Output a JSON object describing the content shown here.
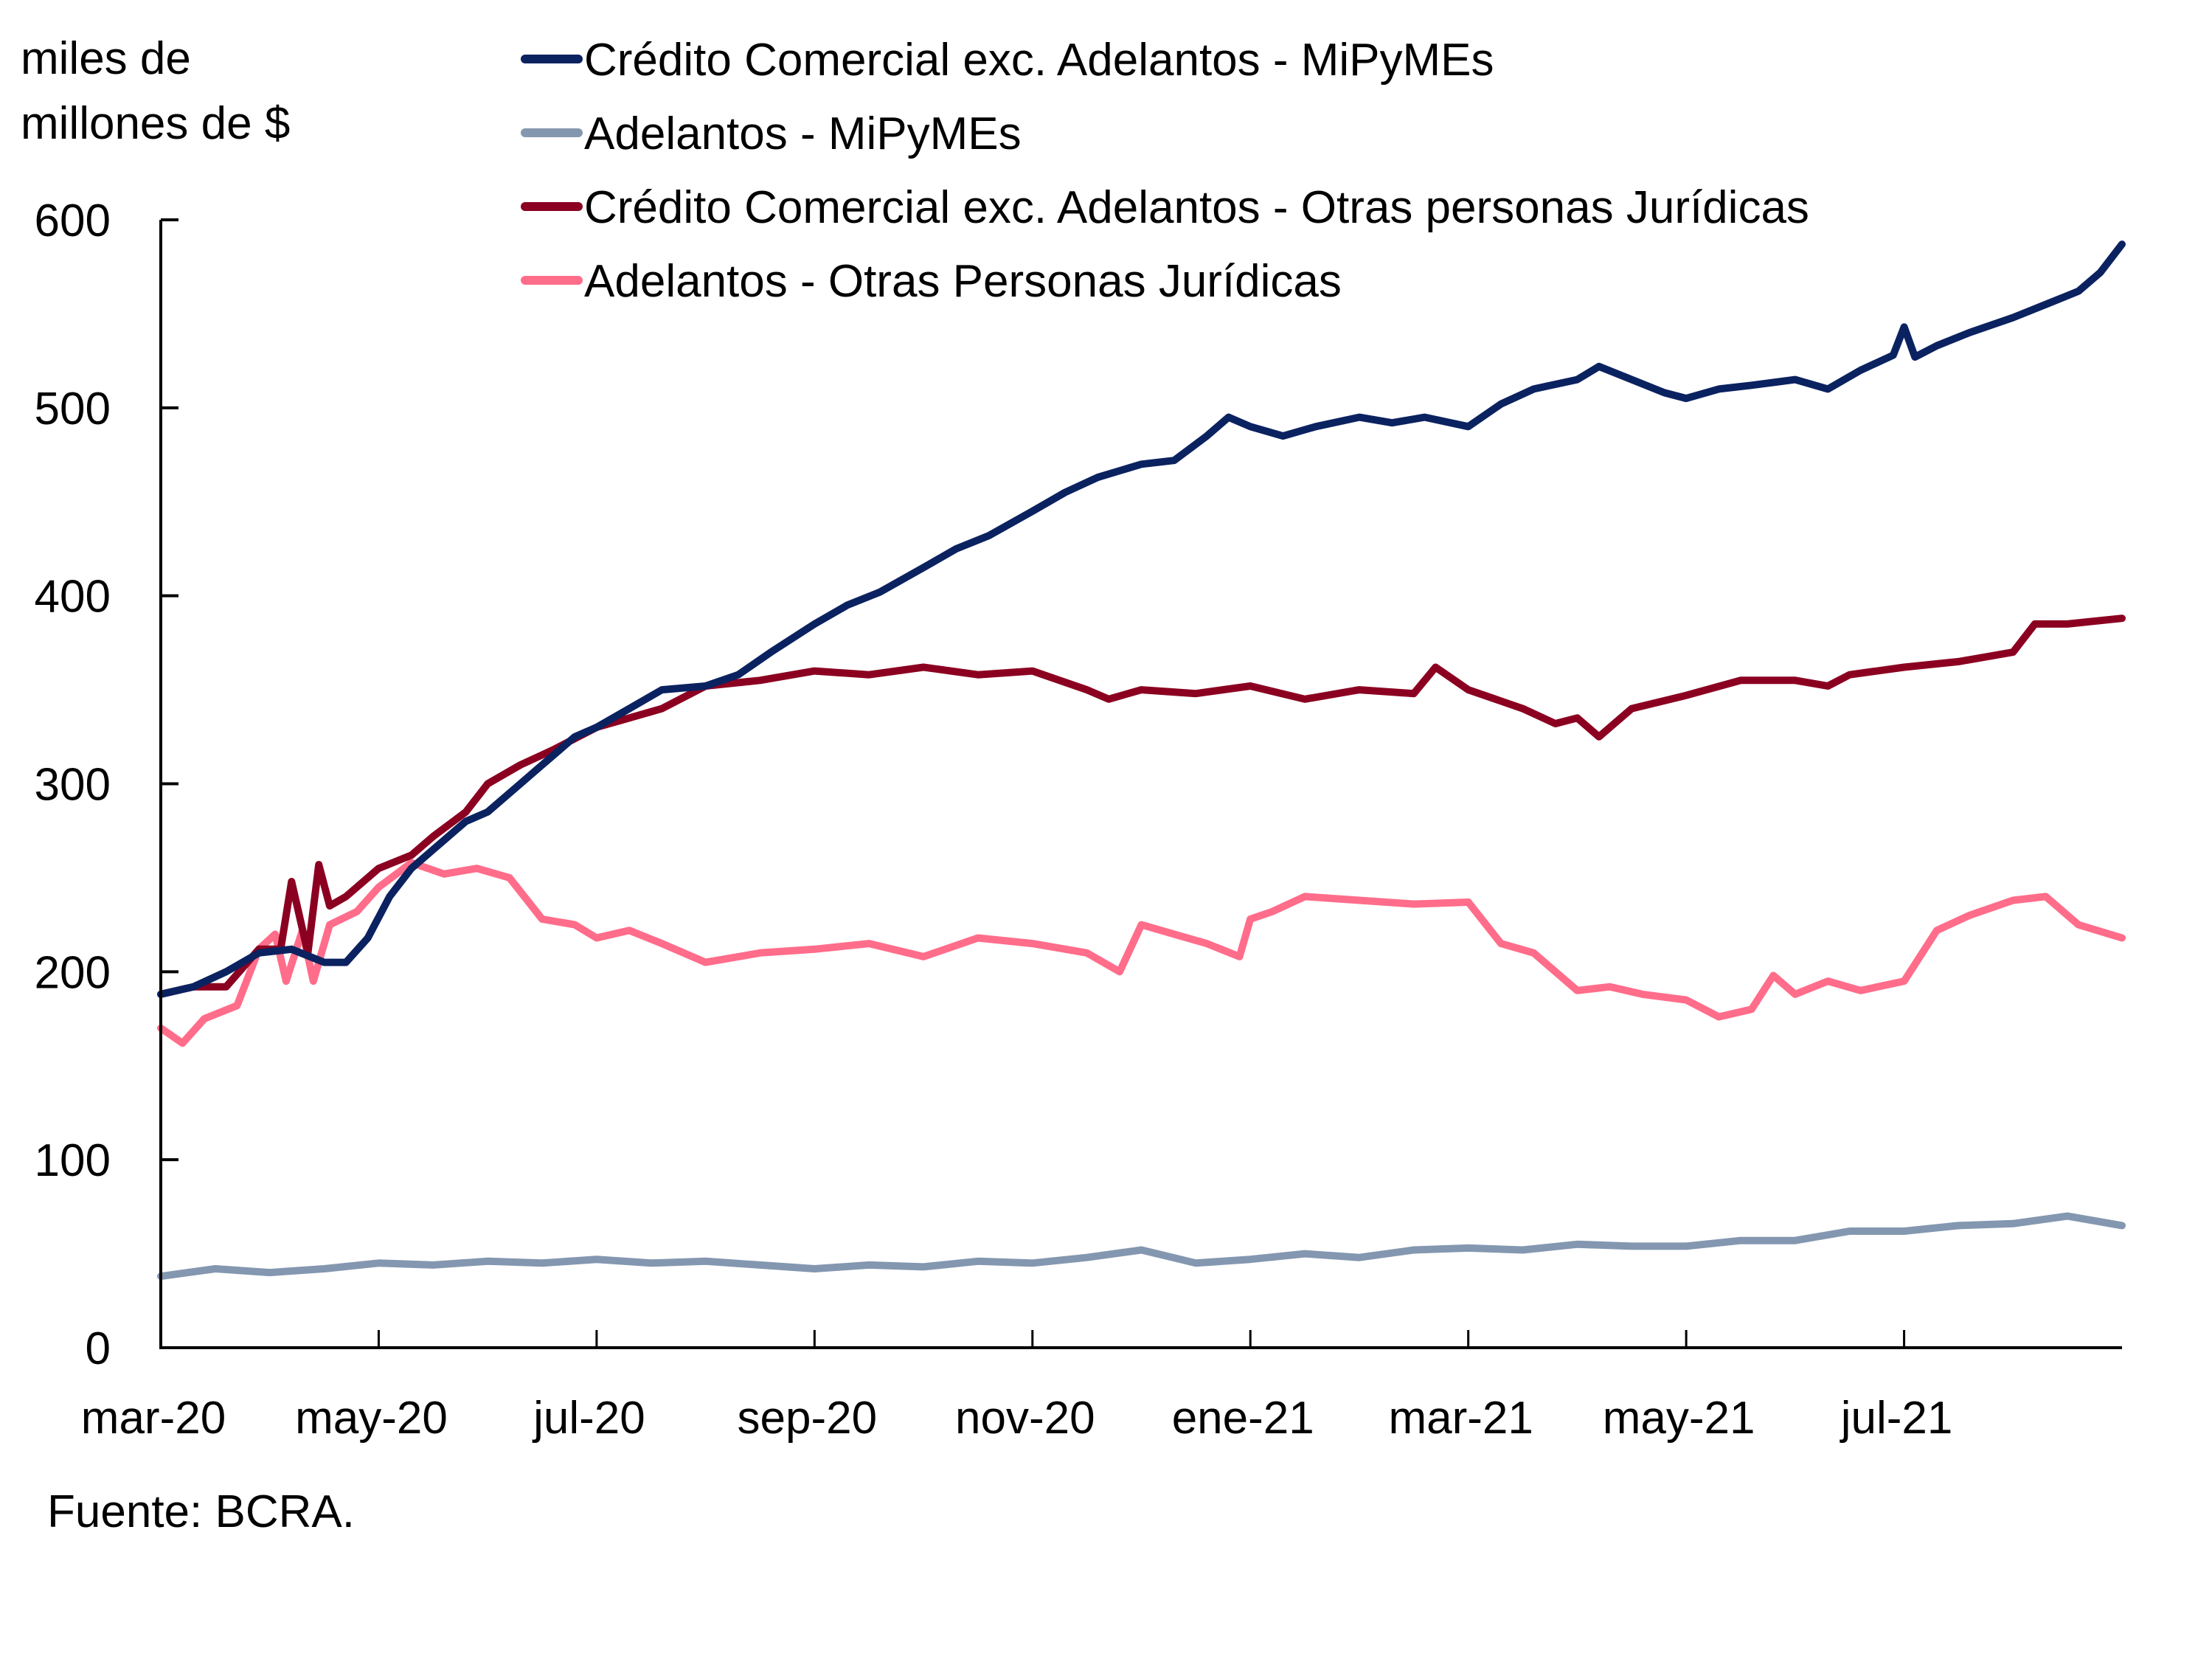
{
  "chart_data": {
    "type": "line",
    "title": "",
    "ylabel_lines": [
      "miles de",
      "millones de $"
    ],
    "xlabel": "",
    "ylim": [
      0,
      600
    ],
    "yticks": [
      0,
      100,
      200,
      300,
      400,
      500,
      600
    ],
    "x_unit": "months since 2020-03-01",
    "xlim": [
      0,
      18
    ],
    "xticks": [
      {
        "pos": 0,
        "label": "mar-20"
      },
      {
        "pos": 2,
        "label": "may-20"
      },
      {
        "pos": 4,
        "label": "jul-20"
      },
      {
        "pos": 6,
        "label": "sep-20"
      },
      {
        "pos": 8,
        "label": "nov-20"
      },
      {
        "pos": 10,
        "label": "ene-21"
      },
      {
        "pos": 12,
        "label": "mar-21"
      },
      {
        "pos": 14,
        "label": "may-21"
      },
      {
        "pos": 16,
        "label": "jul-21"
      }
    ],
    "grid": false,
    "legend_position": "top",
    "source": "Fuente: BCRA.",
    "series": [
      {
        "name": "Crédito Comercial exc. Adelantos - MiPyMEs",
        "color": "#0B2260",
        "x": [
          0,
          0.3,
          0.6,
          0.9,
          1.2,
          1.5,
          1.7,
          1.9,
          2.1,
          2.3,
          2.5,
          2.8,
          3.0,
          3.3,
          3.5,
          3.8,
          4.0,
          4.3,
          4.6,
          5.0,
          5.3,
          5.6,
          6.0,
          6.3,
          6.6,
          7.0,
          7.3,
          7.6,
          8.0,
          8.3,
          8.6,
          9.0,
          9.3,
          9.6,
          9.8,
          10.0,
          10.3,
          10.6,
          11.0,
          11.3,
          11.6,
          12.0,
          12.3,
          12.6,
          13.0,
          13.2,
          13.5,
          13.8,
          14.0,
          14.3,
          14.6,
          15.0,
          15.3,
          15.6,
          15.9,
          16.0,
          16.1,
          16.3,
          16.6,
          17.0,
          17.3,
          17.6,
          17.8,
          18.0
        ],
        "values": [
          188,
          192,
          200,
          210,
          212,
          205,
          205,
          218,
          240,
          255,
          265,
          280,
          285,
          300,
          310,
          325,
          330,
          340,
          350,
          352,
          358,
          370,
          385,
          395,
          402,
          415,
          425,
          432,
          445,
          455,
          463,
          470,
          472,
          485,
          495,
          490,
          485,
          490,
          495,
          492,
          495,
          490,
          502,
          510,
          515,
          522,
          515,
          508,
          505,
          510,
          512,
          515,
          510,
          520,
          528,
          543,
          527,
          533,
          540,
          548,
          555,
          562,
          572,
          587
        ]
      },
      {
        "name": "Adelantos - MiPyMEs",
        "color": "#8497B0",
        "x": [
          0,
          0.5,
          1.0,
          1.5,
          2.0,
          2.5,
          3.0,
          3.5,
          4.0,
          4.5,
          5.0,
          5.5,
          6.0,
          6.5,
          7.0,
          7.5,
          8.0,
          8.5,
          9.0,
          9.5,
          10.0,
          10.5,
          11.0,
          11.5,
          12.0,
          12.5,
          13.0,
          13.5,
          14.0,
          14.5,
          15.0,
          15.5,
          16.0,
          16.5,
          17.0,
          17.5,
          18.0
        ],
        "values": [
          38,
          42,
          40,
          42,
          45,
          44,
          46,
          45,
          47,
          45,
          46,
          44,
          42,
          44,
          43,
          46,
          45,
          48,
          52,
          45,
          47,
          50,
          48,
          52,
          53,
          52,
          55,
          54,
          54,
          57,
          57,
          62,
          62,
          65,
          66,
          70,
          65
        ]
      },
      {
        "name": "Crédito Comercial exc. Adelantos - Otras personas Jurídicas",
        "color": "#8B0020",
        "x": [
          0,
          0.3,
          0.6,
          0.9,
          1.1,
          1.2,
          1.35,
          1.45,
          1.55,
          1.7,
          2.0,
          2.3,
          2.5,
          2.8,
          3.0,
          3.3,
          3.6,
          4.0,
          4.3,
          4.6,
          5.0,
          5.5,
          6.0,
          6.5,
          7.0,
          7.5,
          8.0,
          8.5,
          8.7,
          9.0,
          9.5,
          10.0,
          10.5,
          11.0,
          11.5,
          11.7,
          12.0,
          12.5,
          12.8,
          13.0,
          13.2,
          13.5,
          14.0,
          14.5,
          15.0,
          15.3,
          15.5,
          16.0,
          16.5,
          17.0,
          17.2,
          17.5,
          18.0
        ],
        "values": [
          188,
          192,
          192,
          212,
          212,
          248,
          210,
          257,
          235,
          240,
          255,
          262,
          272,
          285,
          300,
          310,
          318,
          330,
          335,
          340,
          352,
          355,
          360,
          358,
          362,
          358,
          360,
          350,
          345,
          350,
          348,
          352,
          345,
          350,
          348,
          362,
          350,
          340,
          332,
          335,
          325,
          340,
          347,
          355,
          355,
          352,
          358,
          362,
          365,
          370,
          385,
          385,
          388
        ]
      },
      {
        "name": "Adelantos - Otras Personas Jurídicas",
        "color": "#FF6D8A",
        "x": [
          0,
          0.2,
          0.4,
          0.7,
          0.9,
          1.05,
          1.15,
          1.3,
          1.4,
          1.55,
          1.8,
          2.0,
          2.3,
          2.6,
          2.9,
          3.2,
          3.5,
          3.8,
          4.0,
          4.3,
          4.6,
          5.0,
          5.5,
          6.0,
          6.5,
          7.0,
          7.5,
          8.0,
          8.5,
          8.8,
          9.0,
          9.3,
          9.6,
          9.9,
          10.0,
          10.2,
          10.5,
          11.0,
          11.5,
          12.0,
          12.3,
          12.6,
          13.0,
          13.3,
          13.6,
          14.0,
          14.3,
          14.6,
          14.8,
          15.0,
          15.3,
          15.6,
          16.0,
          16.3,
          16.6,
          17.0,
          17.3,
          17.6,
          18.0
        ],
        "values": [
          170,
          162,
          175,
          182,
          212,
          220,
          195,
          222,
          195,
          225,
          232,
          245,
          258,
          252,
          255,
          250,
          228,
          225,
          218,
          222,
          215,
          205,
          210,
          212,
          215,
          208,
          218,
          215,
          210,
          200,
          225,
          220,
          215,
          208,
          228,
          232,
          240,
          238,
          236,
          237,
          215,
          210,
          190,
          192,
          188,
          185,
          176,
          180,
          198,
          188,
          195,
          190,
          195,
          222,
          230,
          238,
          240,
          225,
          218
        ]
      }
    ]
  }
}
